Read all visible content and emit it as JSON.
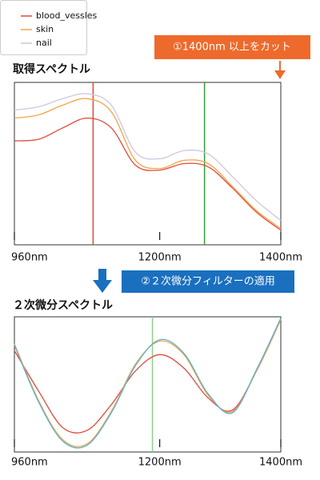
{
  "chart_data": [
    {
      "type": "line",
      "title": "取得スペクトル",
      "annotation": "①1400nm 以上をカット",
      "x": [
        960,
        1000,
        1040,
        1080,
        1120,
        1160,
        1200,
        1240,
        1280,
        1320,
        1360,
        1400
      ],
      "xlim": [
        960,
        1400
      ],
      "xticks": [
        {
          "value": 960,
          "label": "960nm"
        },
        {
          "value": 1200,
          "label": "1200nm"
        },
        {
          "value": 1400,
          "label": "1400nm"
        }
      ],
      "ylim": [
        0,
        1
      ],
      "grid": false,
      "vlines": [
        {
          "x": 1090,
          "color": "#e04a3a"
        },
        {
          "x": 1274,
          "color": "#3a9a3a"
        }
      ],
      "series": [
        {
          "name": "blood_vessles",
          "color": "#e04a3a",
          "values": [
            0.64,
            0.65,
            0.72,
            0.78,
            0.72,
            0.49,
            0.46,
            0.5,
            0.48,
            0.35,
            0.2,
            0.09
          ]
        },
        {
          "name": "skin",
          "color": "#f2a44a",
          "values": [
            0.78,
            0.8,
            0.86,
            0.9,
            0.82,
            0.52,
            0.47,
            0.52,
            0.5,
            0.36,
            0.21,
            0.1
          ]
        },
        {
          "name": "nail",
          "color": "#cfc6de",
          "values": [
            0.83,
            0.85,
            0.9,
            0.93,
            0.86,
            0.57,
            0.53,
            0.58,
            0.56,
            0.42,
            0.27,
            0.15
          ]
        }
      ]
    },
    {
      "type": "line",
      "title": "２次微分スペクトル",
      "annotation": "②２次微分フィルターの適用",
      "x": [
        960,
        1000,
        1040,
        1080,
        1120,
        1160,
        1200,
        1240,
        1280,
        1320,
        1360,
        1400
      ],
      "xlim": [
        960,
        1400
      ],
      "xticks": [
        {
          "value": 960,
          "label": "960nm"
        },
        {
          "value": 1200,
          "label": "1200nm"
        },
        {
          "value": 1400,
          "label": "1400nm"
        }
      ],
      "ylim": [
        0,
        1
      ],
      "grid": false,
      "vlines": [
        {
          "x": 1188,
          "color": "#8fcf8f"
        }
      ],
      "series": [
        {
          "name": "blood_vessles",
          "color": "#e04a3a",
          "values": [
            0.75,
            0.45,
            0.18,
            0.16,
            0.35,
            0.6,
            0.72,
            0.62,
            0.4,
            0.31,
            0.6,
            0.98
          ]
        },
        {
          "name": "skin",
          "color": "#f2a44a",
          "values": [
            0.8,
            0.38,
            0.09,
            0.06,
            0.3,
            0.65,
            0.82,
            0.72,
            0.42,
            0.3,
            0.6,
            0.98
          ]
        },
        {
          "name": "nail",
          "color": "#5ab0d0",
          "values": [
            0.79,
            0.37,
            0.08,
            0.05,
            0.29,
            0.64,
            0.83,
            0.73,
            0.43,
            0.29,
            0.61,
            0.99
          ]
        }
      ]
    }
  ]
}
